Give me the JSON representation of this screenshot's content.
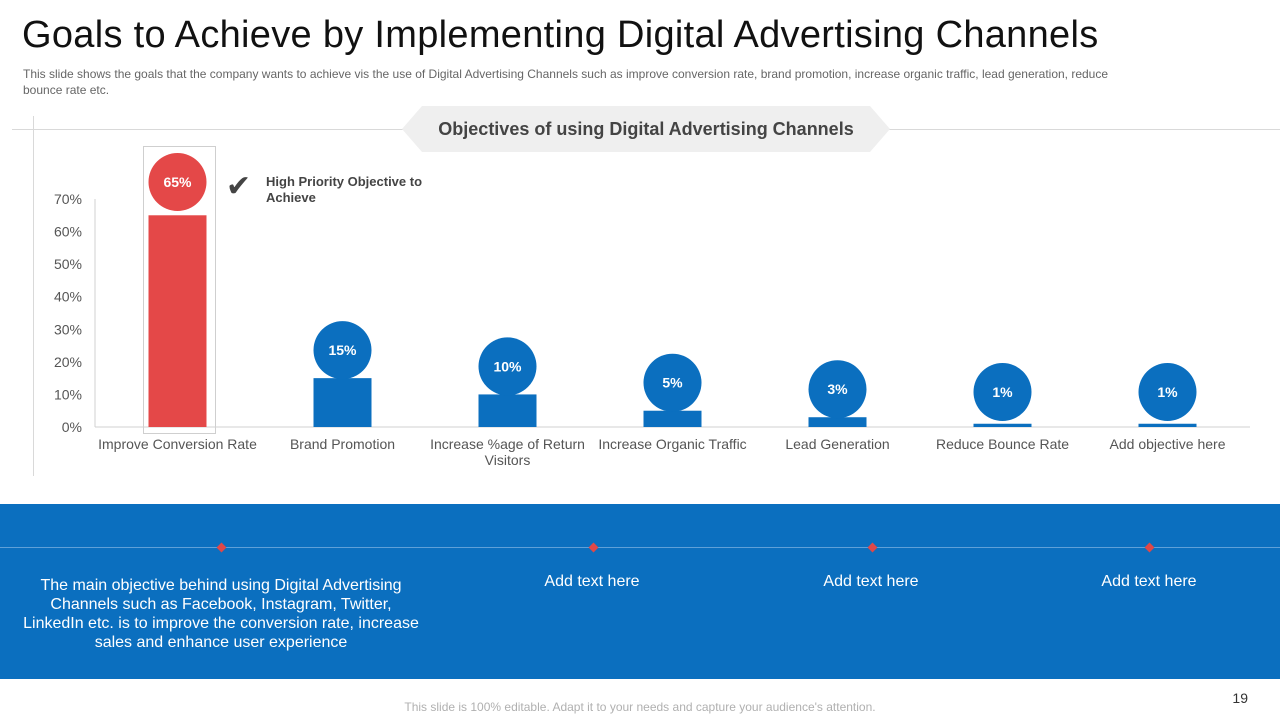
{
  "title": "Goals to Achieve by Implementing Digital Advertising Channels",
  "subtitle": "This slide shows the goals that the company wants to achieve vis the use of Digital Advertising Channels such as improve conversion rate, brand promotion, increase organic traffic, lead generation, reduce bounce rate etc.",
  "banner": "Objectives of using Digital Advertising Channels",
  "priority_label": "High Priority Objective to Achieve",
  "colors": {
    "highlight": "#e44848",
    "primary": "#0b6fbf"
  },
  "chart_data": {
    "type": "bar",
    "title": "Objectives of using Digital Advertising Channels",
    "categories": [
      "Improve Conversion Rate",
      "Brand Promotion",
      "Increase %age of Return Visitors",
      "Increase Organic Traffic",
      "Lead Generation",
      "Reduce Bounce Rate",
      "Add objective here"
    ],
    "values": [
      65,
      15,
      10,
      5,
      3,
      1,
      1
    ],
    "data_labels": [
      "65%",
      "15%",
      "10%",
      "5%",
      "3%",
      "1%",
      "1%"
    ],
    "yticks": [
      "0%",
      "10%",
      "20%",
      "30%",
      "40%",
      "50%",
      "60%",
      "70%"
    ],
    "ylim": [
      0,
      70
    ],
    "highlight_index": 0,
    "xlabel": "",
    "ylabel": ""
  },
  "panel": {
    "main_text": "The main objective behind using Digital Advertising Channels such as Facebook, Instagram, Twitter, LinkedIn etc. is to improve the conversion rate, increase sales and enhance user experience",
    "items": [
      "Add text here",
      "Add text here",
      "Add text here"
    ]
  },
  "footer": "This slide is 100% editable. Adapt it to your needs and capture your audience's attention.",
  "page_number": "19"
}
